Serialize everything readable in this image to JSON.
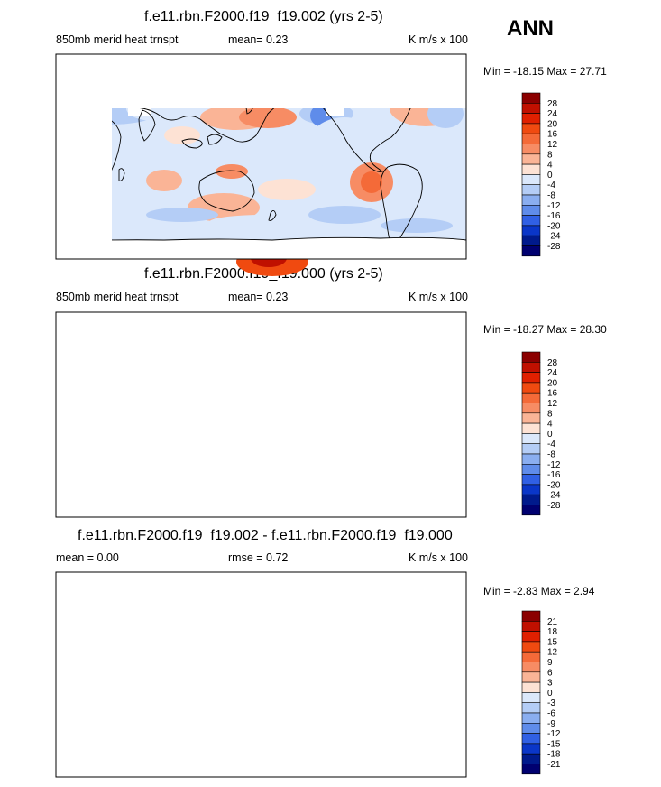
{
  "season": "ANN",
  "panels": [
    {
      "title": "f.e11.rbn.F2000.f19_f19.002 (yrs 2-5)",
      "left_label": "850mb merid heat trnspt",
      "center_label": "mean=  0.23",
      "right_label": "K m/s x 100",
      "minmax": "Min = -18.15 Max =  27.71",
      "colorbar_levels": [
        "28",
        "24",
        "20",
        "16",
        "12",
        "8",
        "4",
        "0",
        "-4",
        "-8",
        "-12",
        "-16",
        "-20",
        "-24",
        "-28"
      ]
    },
    {
      "title": "f.e11.rbn.F2000.f19_f19.000 (yrs 2-5)",
      "left_label": "850mb merid heat trnspt",
      "center_label": "mean=  0.23",
      "right_label": "K m/s x 100",
      "minmax": "Min = -18.27 Max =  28.30",
      "colorbar_levels": [
        "28",
        "24",
        "20",
        "16",
        "12",
        "8",
        "4",
        "0",
        "-4",
        "-8",
        "-12",
        "-16",
        "-20",
        "-24",
        "-28"
      ]
    },
    {
      "title": "f.e11.rbn.F2000.f19_f19.002 - f.e11.rbn.F2000.f19_f19.000",
      "left_label": "mean =  0.00",
      "center_label": "rmse =  0.72",
      "right_label": "K m/s x 100",
      "minmax": "Min =  -2.83 Max =  2.94",
      "colorbar_levels": [
        "21",
        "18",
        "15",
        "12",
        "9",
        "6",
        "3",
        "0",
        "-3",
        "-6",
        "-9",
        "-12",
        "-15",
        "-18",
        "-21"
      ]
    }
  ],
  "chart_data": [
    {
      "type": "heatmap",
      "title": "f.e11.rbn.F2000.f19_f19.002 (yrs 2-5)",
      "variable": "850mb merid heat trnspt",
      "units": "K m/s x 100",
      "mean": 0.23,
      "min": -18.15,
      "max": 27.71,
      "contour_levels": [
        -28,
        -24,
        -20,
        -16,
        -12,
        -8,
        -4,
        0,
        4,
        8,
        12,
        16,
        20,
        24,
        28
      ]
    },
    {
      "type": "heatmap",
      "title": "f.e11.rbn.F2000.f19_f19.000 (yrs 2-5)",
      "variable": "850mb merid heat trnspt",
      "units": "K m/s x 100",
      "mean": 0.23,
      "min": -18.27,
      "max": 28.3,
      "contour_levels": [
        -28,
        -24,
        -20,
        -16,
        -12,
        -8,
        -4,
        0,
        4,
        8,
        12,
        16,
        20,
        24,
        28
      ]
    },
    {
      "type": "heatmap",
      "title": "f.e11.rbn.F2000.f19_f19.002 - f.e11.rbn.F2000.f19_f19.000",
      "units": "K m/s x 100",
      "mean": 0.0,
      "rmse": 0.72,
      "min": -2.83,
      "max": 2.94,
      "contour_levels": [
        -21,
        -18,
        -15,
        -12,
        -9,
        -6,
        -3,
        0,
        3,
        6,
        9,
        12,
        15,
        18,
        21
      ]
    }
  ],
  "colors": {
    "scale": [
      "#8b0000",
      "#c01000",
      "#e02000",
      "#f04a10",
      "#f46a38",
      "#f78c64",
      "#fab496",
      "#fde2d4",
      "#dbe8fb",
      "#b4cdf6",
      "#8aaef0",
      "#5f8cea",
      "#3060e4",
      "#0a36c8",
      "#001a8c",
      "#000070"
    ]
  }
}
